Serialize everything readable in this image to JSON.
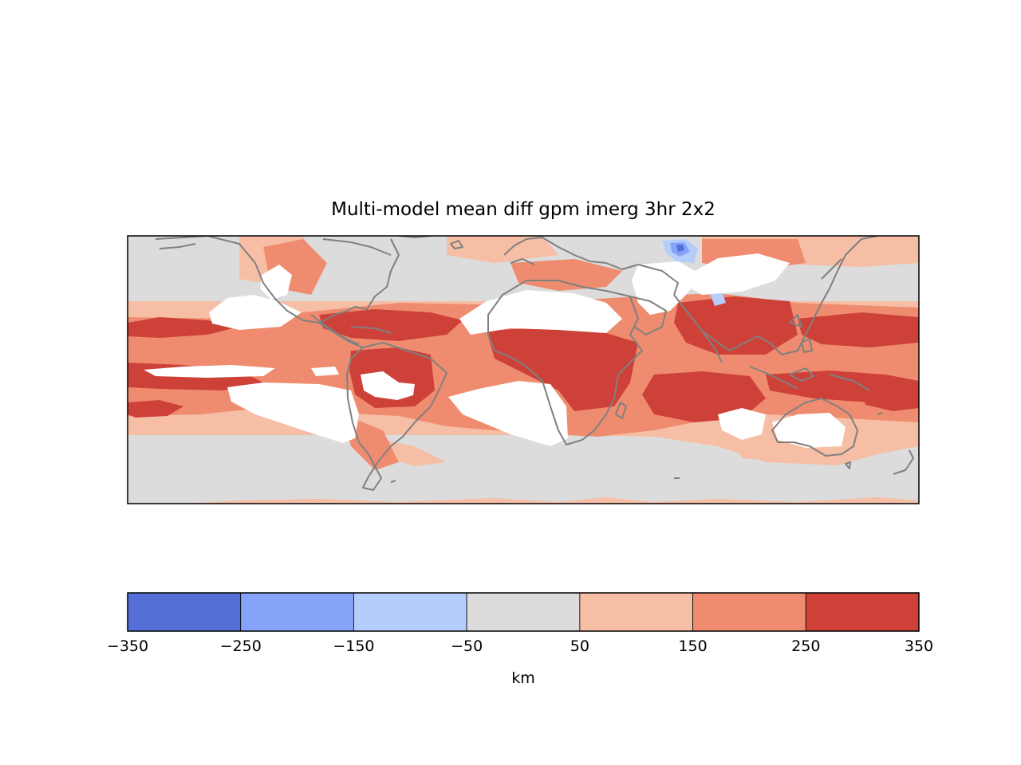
{
  "chart_data": {
    "type": "heatmap",
    "title": "Multi-model mean diff gpm imerg 3hr 2x2",
    "projection": "plate-carree",
    "longitude_range": [
      -180,
      180
    ],
    "latitude_range": [
      -60,
      60
    ],
    "coastlines": true,
    "missing_data_color": "#ffffff",
    "colorbar": {
      "label": "km",
      "orientation": "horizontal",
      "levels": [
        -350,
        -250,
        -150,
        -50,
        50,
        150,
        250,
        350
      ],
      "tick_labels": [
        "−350",
        "−250",
        "−150",
        "−50",
        "50",
        "150",
        "250",
        "350"
      ],
      "colors": [
        "#5470d8",
        "#84a3f9",
        "#b5cdfb",
        "#dcdcdc",
        "#f6bea5",
        "#ef8c6f",
        "#cd4139"
      ]
    }
  }
}
